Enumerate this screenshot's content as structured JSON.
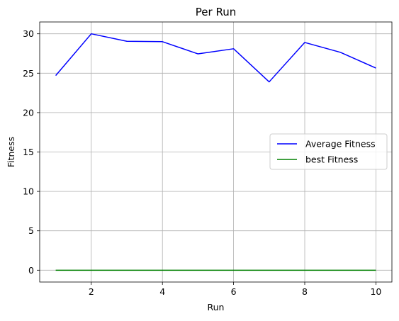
{
  "chart_data": {
    "type": "line",
    "title": "Per Run",
    "xlabel": "Run",
    "ylabel": "Fitness",
    "x": [
      1,
      2,
      3,
      4,
      5,
      6,
      7,
      8,
      9,
      10
    ],
    "series": [
      {
        "name": "Average Fitness",
        "color": "#0000ff",
        "values": [
          24.7,
          30.0,
          29.05,
          29.0,
          27.45,
          28.1,
          23.9,
          28.9,
          27.65,
          25.65
        ]
      },
      {
        "name": "best Fitness",
        "color": "#008000",
        "values": [
          0,
          0,
          0,
          0,
          0,
          0,
          0,
          0,
          0,
          0
        ]
      }
    ],
    "xlim": [
      0.55,
      10.45
    ],
    "ylim": [
      -1.5,
      31.5
    ],
    "xticks": [
      2,
      4,
      6,
      8,
      10
    ],
    "yticks": [
      0,
      5,
      10,
      15,
      20,
      25,
      30
    ],
    "grid": true,
    "legend_position": "center-right"
  }
}
